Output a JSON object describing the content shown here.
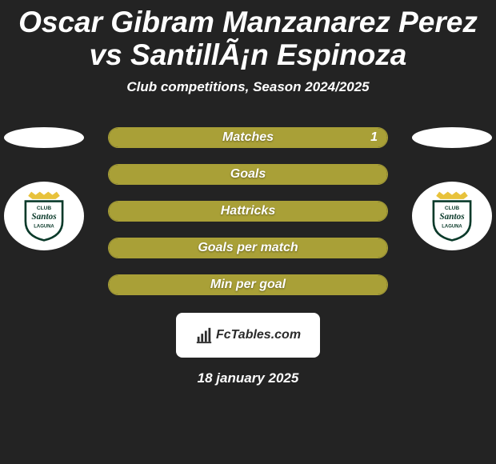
{
  "title": "Oscar Gibram Manzanarez Perez vs SantillÃ¡n Espinoza",
  "title_fontsize": 37,
  "title_color": "#ffffff",
  "subtitle": "Club competitions, Season 2024/2025",
  "subtitle_fontsize": 17,
  "background_color": "#232323",
  "accent_color": "#a9a037",
  "bar_border_color": "#a9a037",
  "bar_fill_color": "#a9a037",
  "bar_label_color": "#ffffff",
  "bar_label_fontsize": 16,
  "bars": [
    {
      "label": "Matches",
      "left_pct": 0,
      "right_pct": 100,
      "right_value": "1"
    },
    {
      "label": "Goals",
      "left_pct": 0,
      "right_pct": 100
    },
    {
      "label": "Hattricks",
      "left_pct": 0,
      "right_pct": 100
    },
    {
      "label": "Goals per match",
      "left_pct": 0,
      "right_pct": 100
    },
    {
      "label": "Min per goal",
      "left_pct": 0,
      "right_pct": 100
    }
  ],
  "left_badge": {
    "ellipse_color": "#ffffff"
  },
  "right_badge": {
    "ellipse_color": "#ffffff"
  },
  "club_logo": {
    "bg": "#ffffff",
    "shield_fill": "#ffffff",
    "shield_stroke": "#0a3a2a",
    "crown_fill": "#e8c23b",
    "text_color": "#0a3a2a",
    "line1": "CLUB",
    "line2": "Santos",
    "line3": "LAGUNA"
  },
  "watermark": {
    "bg": "#ffffff",
    "text": "FcTables.com",
    "text_color": "#2b2b2b",
    "fontsize": 16,
    "icon_color": "#2b2b2b"
  },
  "date": "18 january 2025",
  "date_fontsize": 17
}
